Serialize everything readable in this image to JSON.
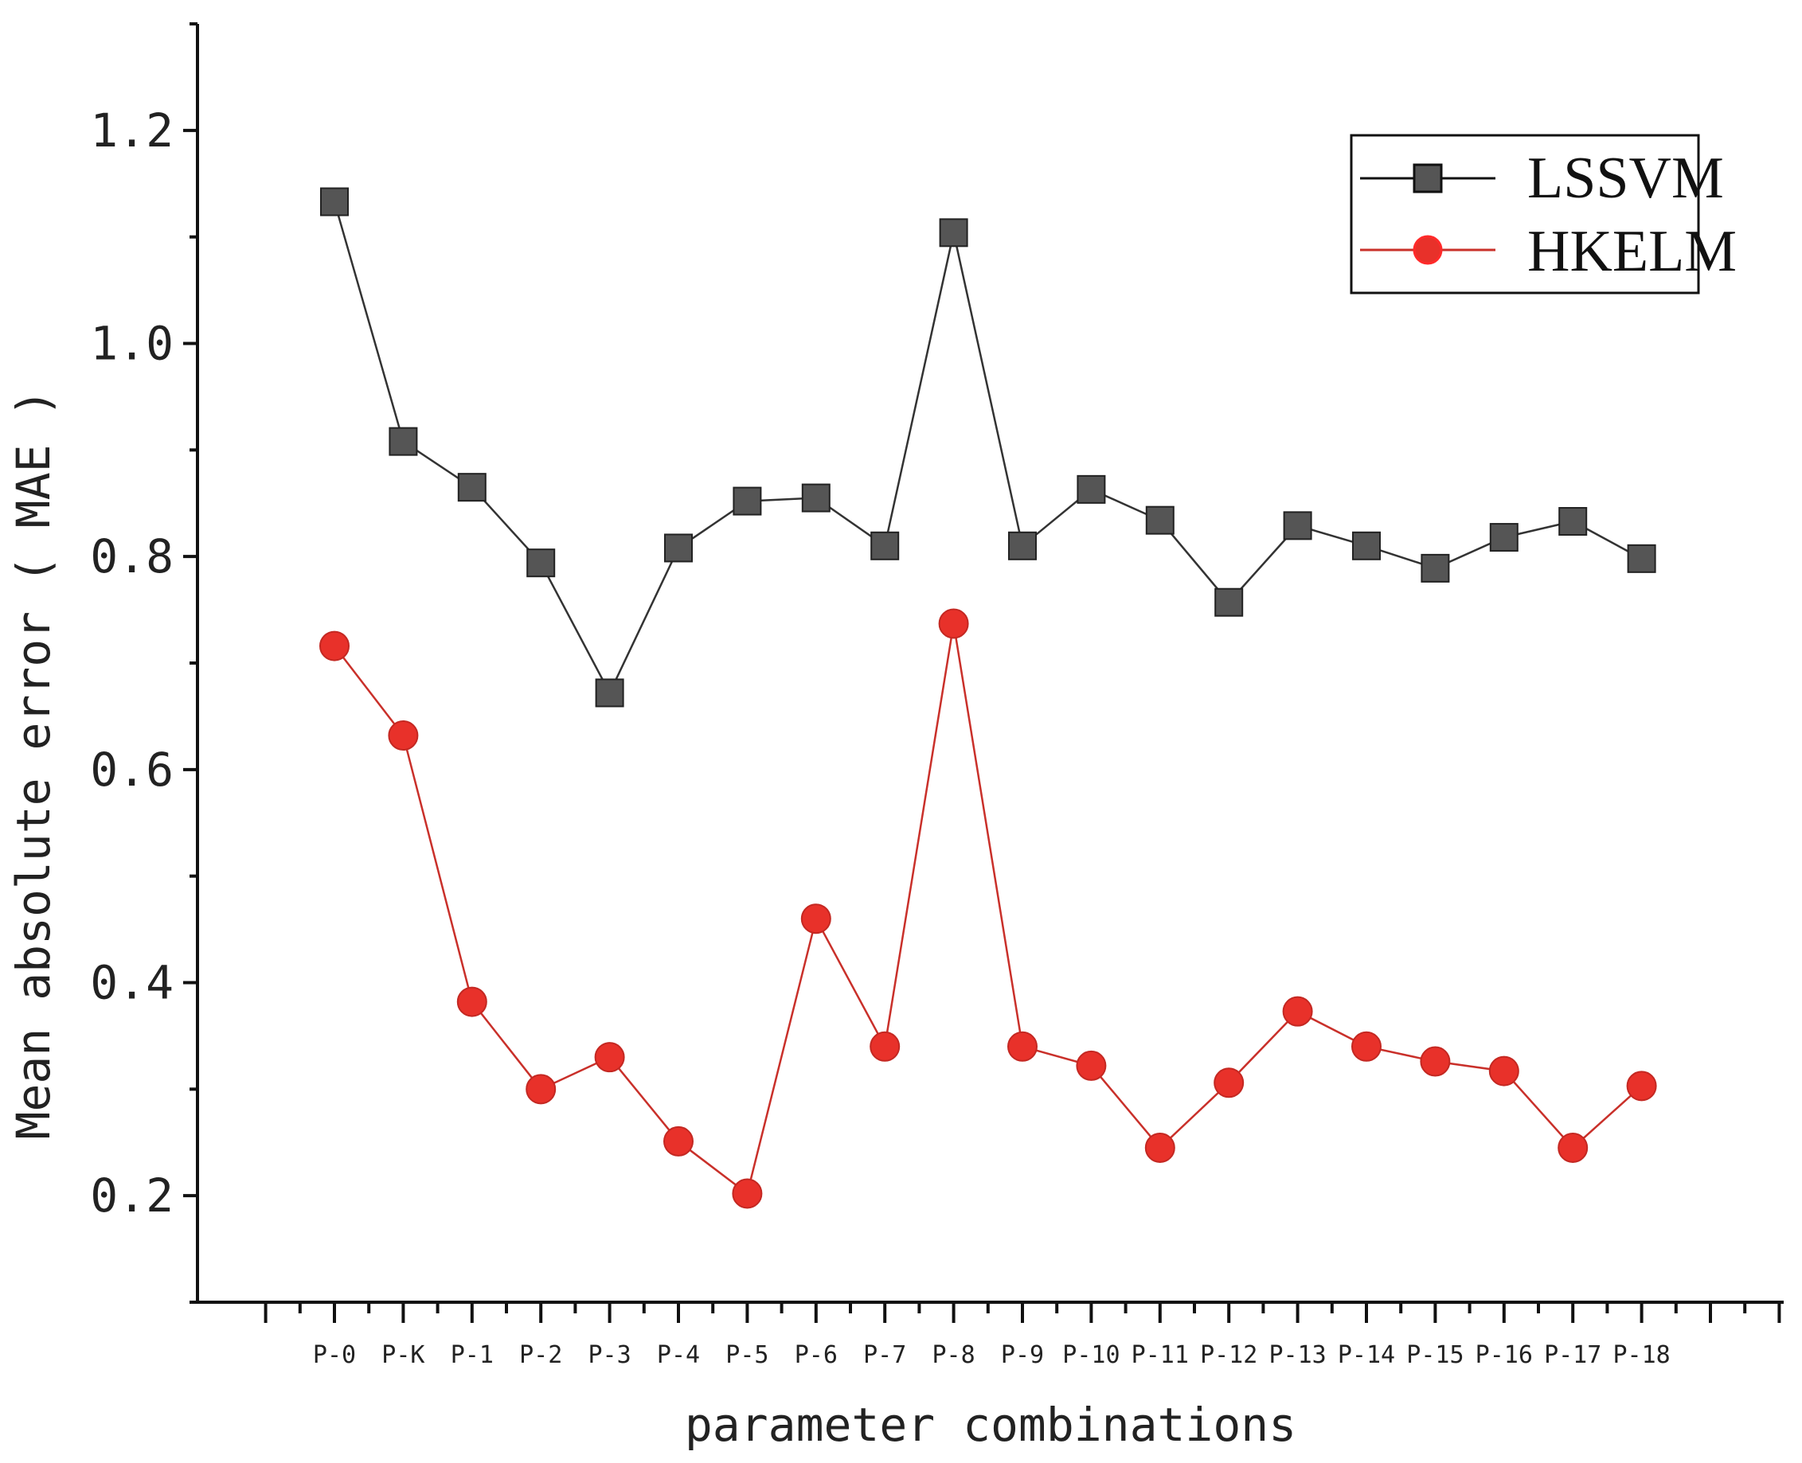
{
  "chart_data": {
    "type": "line",
    "title": "",
    "xlabel": "parameter combinations",
    "ylabel": "Mean absolute error ( MAE )",
    "ylim": [
      0.1,
      1.3
    ],
    "yticks": [
      0.2,
      0.4,
      0.6,
      0.8,
      1.0,
      1.2
    ],
    "ytick_labels": [
      "0.2",
      "0.4",
      "0.6",
      "0.8",
      "1.0",
      "1.2"
    ],
    "categories": [
      "P-0",
      "P-K",
      "P-1",
      "P-2",
      "P-3",
      "P-4",
      "P-5",
      "P-6",
      "P-7",
      "P-8",
      "P-9",
      "P-10",
      "P-11",
      "P-12",
      "P-13",
      "P-14",
      "P-15",
      "P-16",
      "P-17",
      "P-18"
    ],
    "legend_position": "top-right",
    "series": [
      {
        "name": "LSSVM",
        "color": "#555555",
        "marker": "square",
        "values": [
          1.133,
          0.908,
          0.865,
          0.794,
          0.672,
          0.808,
          0.852,
          0.855,
          0.81,
          1.104,
          0.81,
          0.863,
          0.834,
          0.757,
          0.829,
          0.81,
          0.789,
          0.818,
          0.833,
          0.798
        ]
      },
      {
        "name": "HKELM",
        "color": "#e8312a",
        "marker": "circle",
        "values": [
          0.716,
          0.632,
          0.382,
          0.3,
          0.33,
          0.251,
          0.202,
          0.46,
          0.34,
          0.737,
          0.34,
          0.322,
          0.245,
          0.306,
          0.373,
          0.34,
          0.326,
          0.317,
          0.245,
          0.303
        ]
      }
    ]
  }
}
